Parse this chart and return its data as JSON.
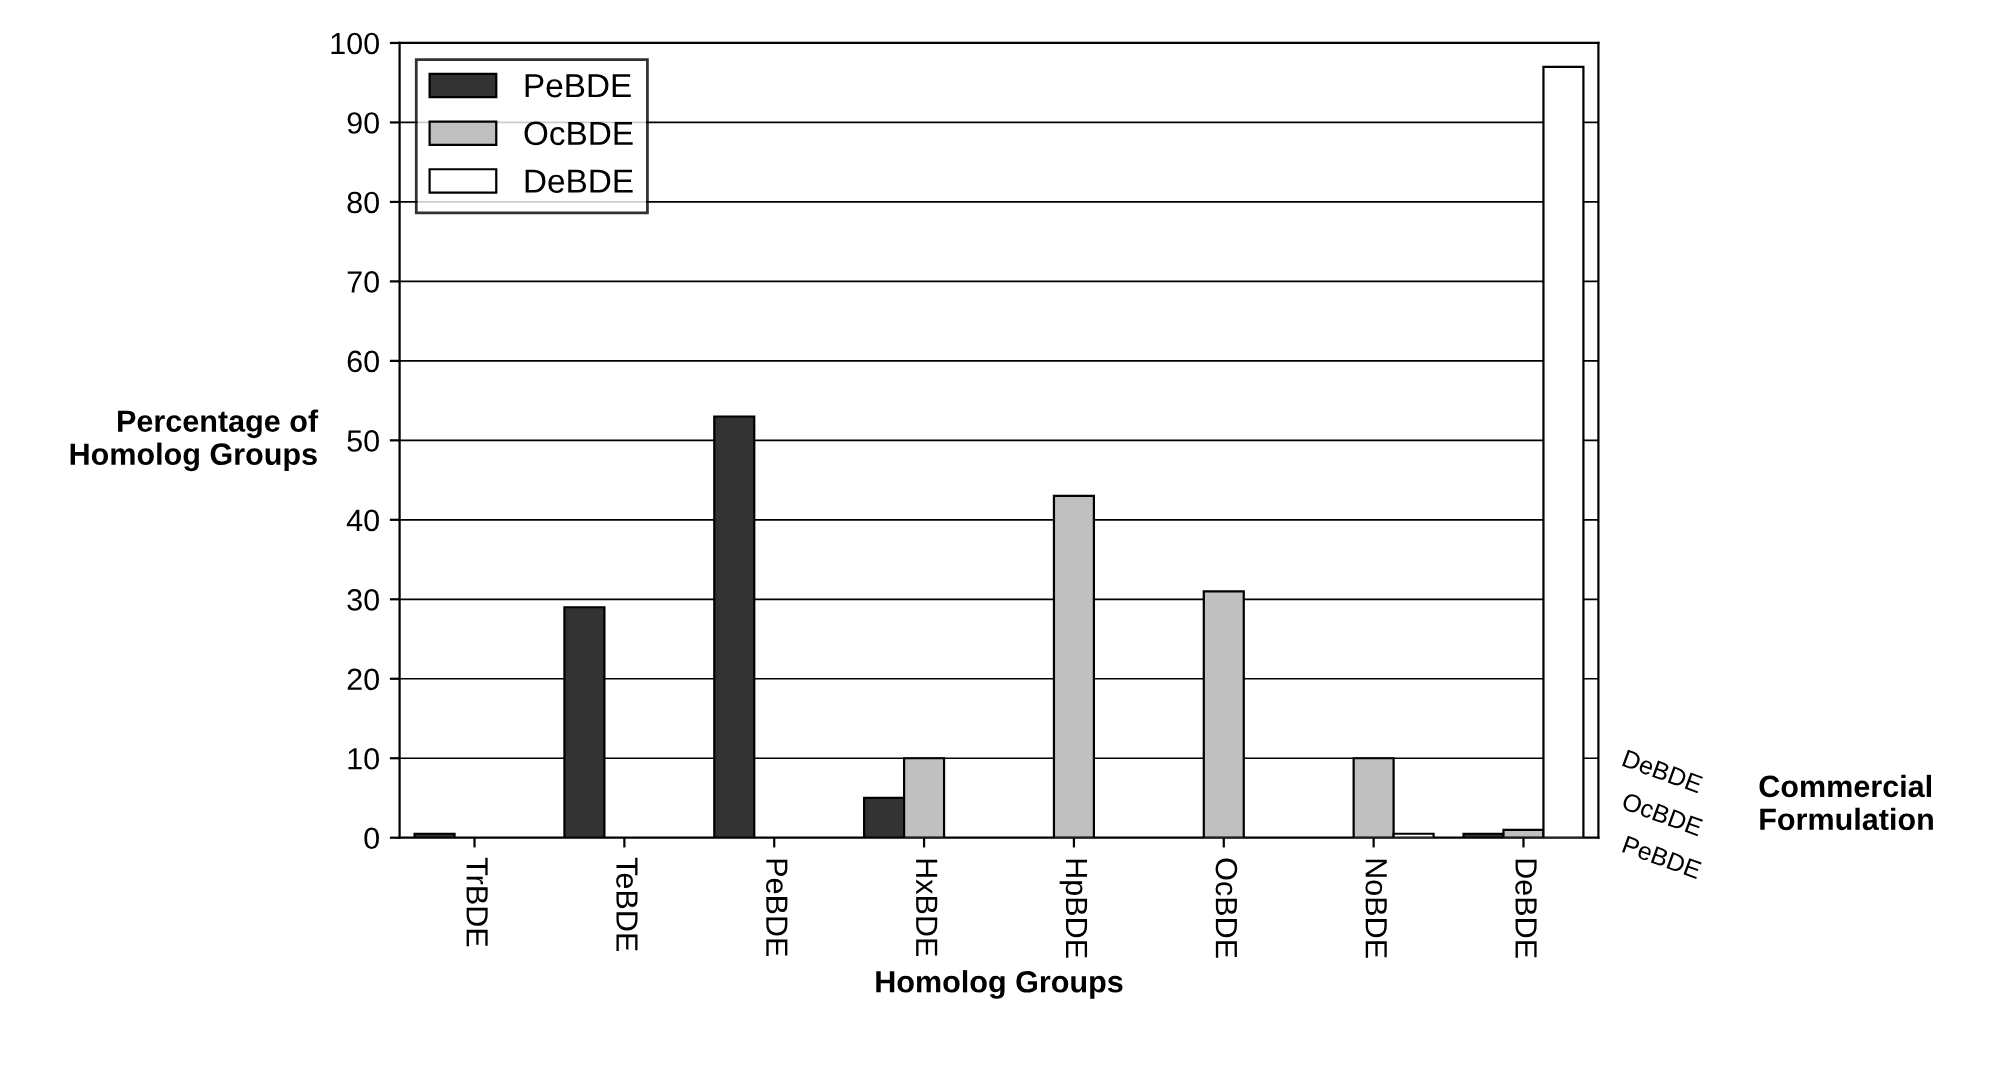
{
  "chart_data": {
    "type": "bar",
    "ylabel": "Percentage of\nHomolog Groups",
    "xlabel": "Homolog Groups",
    "categories": [
      "TrBDE",
      "TeBDE",
      "PeBDE",
      "HxBDE",
      "HpBDE",
      "OcBDE",
      "NoBDE",
      "DeBDE"
    ],
    "series": [
      {
        "name": "PeBDE",
        "color": "#333333",
        "values": [
          0.5,
          29,
          53,
          5,
          null,
          null,
          null,
          0.5
        ]
      },
      {
        "name": "OcBDE",
        "color": "#c0c0c0",
        "values": [
          null,
          null,
          null,
          10,
          43,
          31,
          10,
          1
        ]
      },
      {
        "name": "DeBDE",
        "color": "#ffffff",
        "values": [
          null,
          null,
          null,
          null,
          null,
          null,
          0.5,
          97
        ]
      }
    ],
    "ylim": [
      0,
      100
    ],
    "yticks": [
      0,
      10,
      20,
      30,
      40,
      50,
      60,
      70,
      80,
      90,
      100
    ],
    "grid": "y",
    "legend": "top left",
    "annotations": [
      "Commercial\nFormulation"
    ]
  }
}
